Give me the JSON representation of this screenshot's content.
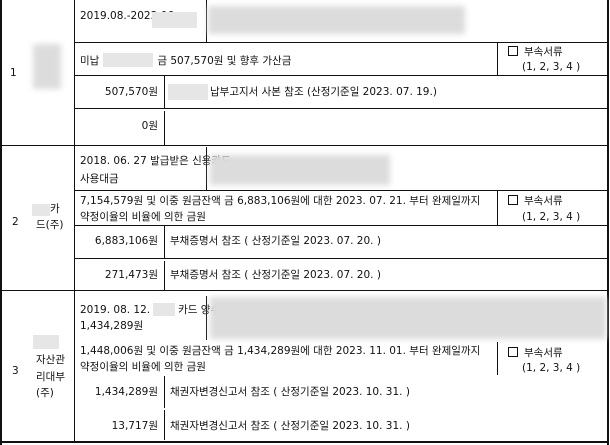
{
  "rows": [
    {
      "no": "1",
      "name": "",
      "cause": "2019.08.-2023.06.",
      "claim_pre": "미납",
      "claim_post": "금 507,570원 및 향후 가산금",
      "principal": "507,570원",
      "principal_note": "납부고지서 사본 참조 (산정기준일 2023. 07. 19.)",
      "interest": "0원",
      "interest_note": ""
    },
    {
      "no": "2",
      "name_suffix1": "카",
      "name_suffix2": "드(주)",
      "cause_l1": "2018. 06. 27 발급받은 신용카드",
      "cause_l2": "사용대금",
      "claim_l1": "7,154,579원 및 이중 원금잔액 금 6,883,106원에 대한 2023. 07. 21. 부터 완제일까지",
      "claim_l2": "약정이율의 비율에 의한 금원",
      "principal": "6,883,106원",
      "principal_note": "부채증명서 참조 ( 산정기준일 2023. 07. 20. )",
      "interest": "271,473원",
      "interest_note": "부채증명서 참조 ( 산정기준일 2023. 07. 20. )"
    },
    {
      "no": "3",
      "name_l1": "자산관",
      "name_l2": "리대부",
      "name_l3": "(주)",
      "cause_pre": "2019. 08. 12.",
      "cause_post": "카드 양수채권",
      "cause_l2": "1,434,289원",
      "claim_l1": "1,448,006원 및 이중 원금잔액 금 1,434,289원에 대한 2023. 11. 01. 부터 완제일까지",
      "claim_l2": "약정이율의 비율에 의한 금원",
      "principal": "1,434,289원",
      "principal_note": "채권자변경신고서 참조 ( 산정기준일 2023. 10. 31. )",
      "interest": "13,717원",
      "interest_note": "채권자변경신고서 참조 ( 산정기준일 2023. 10. 31. )"
    }
  ],
  "attach": {
    "label": "부속서류",
    "nums": "(1, 2, 3, 4 )",
    "checked": false
  }
}
